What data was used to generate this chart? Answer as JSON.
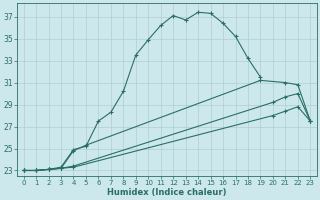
{
  "xlabel": "Humidex (Indice chaleur)",
  "xlim": [
    -0.5,
    23.5
  ],
  "ylim": [
    22.5,
    38.2
  ],
  "xticks": [
    0,
    1,
    2,
    3,
    4,
    5,
    6,
    7,
    8,
    9,
    10,
    11,
    12,
    13,
    14,
    15,
    16,
    17,
    18,
    19,
    20,
    21,
    22,
    23
  ],
  "yticks": [
    23,
    25,
    27,
    29,
    31,
    33,
    35,
    37
  ],
  "bg_color": "#cde8ec",
  "grid_color": "#aecdd4",
  "line_color": "#2a6e68",
  "line1_x": [
    0,
    1,
    2,
    3,
    4,
    5,
    6,
    7,
    8,
    9,
    10,
    11,
    12,
    13,
    14,
    15,
    16,
    17,
    18,
    19
  ],
  "line1_y": [
    23,
    23,
    23.1,
    23.3,
    24.9,
    25.2,
    27.5,
    28.3,
    30.2,
    33.5,
    34.9,
    36.2,
    37.1,
    36.7,
    37.4,
    37.3,
    36.4,
    35.2,
    33.2,
    31.5
  ],
  "line2_x": [
    0,
    1,
    2,
    3,
    4,
    5,
    19,
    21,
    22,
    23
  ],
  "line2_y": [
    23,
    23,
    23.1,
    23.2,
    24.8,
    25.3,
    31.2,
    31.0,
    30.8,
    27.5
  ],
  "line3_x": [
    0,
    1,
    2,
    3,
    4,
    20,
    21,
    22,
    23
  ],
  "line3_y": [
    23,
    23,
    23.1,
    23.2,
    23.4,
    29.2,
    29.7,
    30.0,
    27.5
  ],
  "line4_x": [
    0,
    1,
    2,
    3,
    4,
    20,
    21,
    22,
    23
  ],
  "line4_y": [
    23,
    23,
    23.1,
    23.2,
    23.3,
    28.0,
    28.4,
    28.8,
    27.5
  ]
}
